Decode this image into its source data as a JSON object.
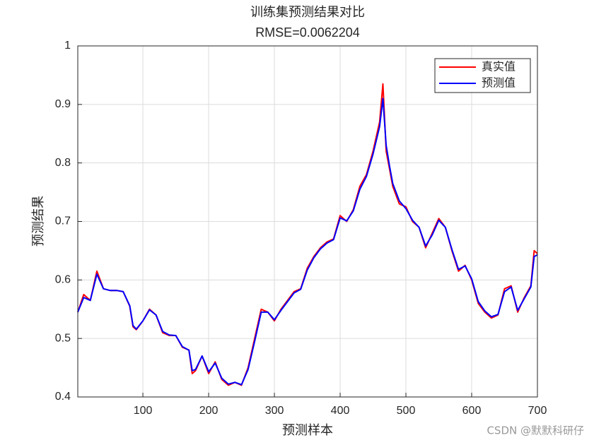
{
  "chart_data": {
    "type": "line",
    "title": "训练集预测结果对比",
    "subtitle": "RMSE=0.0062204",
    "x_label": "预测样本",
    "y_label": "预测结果",
    "watermark": "CSDN @默默科研仔",
    "x": [
      1,
      10,
      20,
      30,
      40,
      50,
      60,
      70,
      80,
      85,
      90,
      100,
      110,
      120,
      130,
      140,
      150,
      160,
      170,
      175,
      180,
      190,
      200,
      210,
      220,
      230,
      240,
      250,
      260,
      270,
      280,
      290,
      300,
      310,
      320,
      330,
      340,
      350,
      360,
      370,
      380,
      390,
      400,
      410,
      420,
      430,
      440,
      450,
      460,
      465,
      470,
      475,
      480,
      490,
      500,
      510,
      520,
      530,
      540,
      550,
      560,
      570,
      580,
      590,
      600,
      610,
      620,
      630,
      640,
      650,
      660,
      670,
      680,
      690,
      695,
      700
    ],
    "series": [
      {
        "name": "真实值",
        "color": "#ff0000",
        "values": [
          0.545,
          0.575,
          0.565,
          0.615,
          0.585,
          0.582,
          0.582,
          0.58,
          0.555,
          0.52,
          0.515,
          0.53,
          0.55,
          0.54,
          0.51,
          0.505,
          0.505,
          0.485,
          0.48,
          0.44,
          0.445,
          0.47,
          0.44,
          0.46,
          0.43,
          0.42,
          0.425,
          0.42,
          0.45,
          0.5,
          0.55,
          0.545,
          0.53,
          0.55,
          0.565,
          0.58,
          0.585,
          0.62,
          0.64,
          0.655,
          0.665,
          0.67,
          0.71,
          0.7,
          0.72,
          0.76,
          0.78,
          0.82,
          0.87,
          0.935,
          0.82,
          0.79,
          0.76,
          0.73,
          0.725,
          0.7,
          0.69,
          0.655,
          0.68,
          0.705,
          0.69,
          0.65,
          0.615,
          0.625,
          0.6,
          0.56,
          0.545,
          0.535,
          0.54,
          0.585,
          0.59,
          0.545,
          0.57,
          0.59,
          0.65,
          0.645
        ]
      },
      {
        "name": "预测值",
        "color": "#0000ff",
        "values": [
          0.545,
          0.57,
          0.565,
          0.61,
          0.585,
          0.582,
          0.582,
          0.58,
          0.556,
          0.522,
          0.516,
          0.53,
          0.549,
          0.54,
          0.512,
          0.506,
          0.505,
          0.486,
          0.48,
          0.445,
          0.447,
          0.47,
          0.443,
          0.458,
          0.432,
          0.422,
          0.425,
          0.421,
          0.447,
          0.495,
          0.545,
          0.545,
          0.532,
          0.548,
          0.563,
          0.578,
          0.584,
          0.617,
          0.638,
          0.653,
          0.663,
          0.669,
          0.706,
          0.701,
          0.718,
          0.755,
          0.777,
          0.815,
          0.862,
          0.91,
          0.83,
          0.795,
          0.765,
          0.735,
          0.722,
          0.702,
          0.69,
          0.658,
          0.677,
          0.702,
          0.69,
          0.652,
          0.618,
          0.624,
          0.602,
          0.563,
          0.547,
          0.537,
          0.541,
          0.58,
          0.588,
          0.548,
          0.568,
          0.588,
          0.64,
          0.643
        ]
      }
    ],
    "xlim": [
      1,
      700
    ],
    "xticks": [
      100,
      200,
      300,
      400,
      500,
      600,
      700
    ],
    "ylim": [
      0.4,
      1
    ],
    "yticks": [
      0.4,
      0.5,
      0.6,
      0.7,
      0.8,
      0.9,
      1
    ],
    "grid": true,
    "legend": "upper right"
  }
}
